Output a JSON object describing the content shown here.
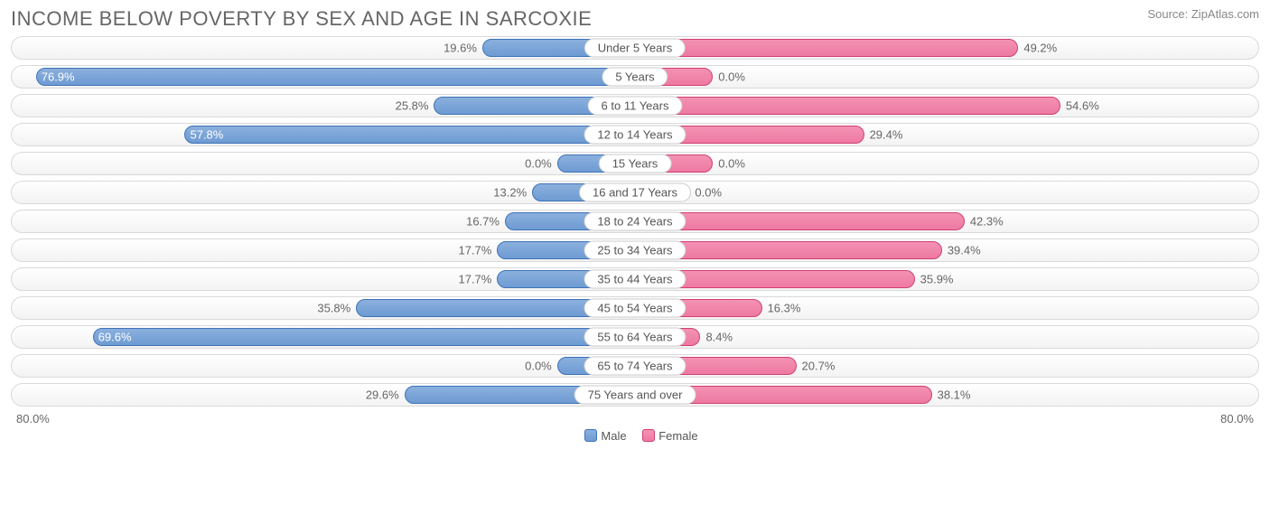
{
  "title": "INCOME BELOW POVERTY BY SEX AND AGE IN SARCOXIE",
  "source": "Source: ZipAtlas.com",
  "chart": {
    "type": "diverging-bar",
    "axis_max": 80.0,
    "axis_label_left": "80.0%",
    "axis_label_right": "80.0%",
    "male_color": "#6e9bd3",
    "male_border": "#3e73b8",
    "female_color": "#ee79a2",
    "female_border": "#d13f72",
    "track_border": "#d9d9d9",
    "track_bg_top": "#ffffff",
    "track_bg_bot": "#f3f3f3",
    "label_fontsize": 13,
    "title_fontsize": 22,
    "title_color": "#666666",
    "min_visible_pct": 10.0,
    "rows": [
      {
        "category": "Under 5 Years",
        "male": 19.6,
        "female": 49.2,
        "male_label": "19.6%",
        "female_label": "49.2%"
      },
      {
        "category": "5 Years",
        "male": 76.9,
        "female": 0.0,
        "male_label": "76.9%",
        "female_label": "0.0%",
        "female_visual": 10.0
      },
      {
        "category": "6 to 11 Years",
        "male": 25.8,
        "female": 54.6,
        "male_label": "25.8%",
        "female_label": "54.6%"
      },
      {
        "category": "12 to 14 Years",
        "male": 57.8,
        "female": 29.4,
        "male_label": "57.8%",
        "female_label": "29.4%"
      },
      {
        "category": "15 Years",
        "male": 0.0,
        "female": 0.0,
        "male_label": "0.0%",
        "female_label": "0.0%",
        "male_visual": 10.0,
        "female_visual": 10.0
      },
      {
        "category": "16 and 17 Years",
        "male": 13.2,
        "female": 0.0,
        "male_label": "13.2%",
        "female_label": "0.0%",
        "female_visual": 7.0
      },
      {
        "category": "18 to 24 Years",
        "male": 16.7,
        "female": 42.3,
        "male_label": "16.7%",
        "female_label": "42.3%"
      },
      {
        "category": "25 to 34 Years",
        "male": 17.7,
        "female": 39.4,
        "male_label": "17.7%",
        "female_label": "39.4%"
      },
      {
        "category": "35 to 44 Years",
        "male": 17.7,
        "female": 35.9,
        "male_label": "17.7%",
        "female_label": "35.9%"
      },
      {
        "category": "45 to 54 Years",
        "male": 35.8,
        "female": 16.3,
        "male_label": "35.8%",
        "female_label": "16.3%"
      },
      {
        "category": "55 to 64 Years",
        "male": 69.6,
        "female": 8.4,
        "male_label": "69.6%",
        "female_label": "8.4%"
      },
      {
        "category": "65 to 74 Years",
        "male": 0.0,
        "female": 20.7,
        "male_label": "0.0%",
        "female_label": "20.7%",
        "male_visual": 10.0
      },
      {
        "category": "75 Years and over",
        "male": 29.6,
        "female": 38.1,
        "male_label": "29.6%",
        "female_label": "38.1%"
      }
    ],
    "legend": {
      "male": "Male",
      "female": "Female"
    }
  }
}
